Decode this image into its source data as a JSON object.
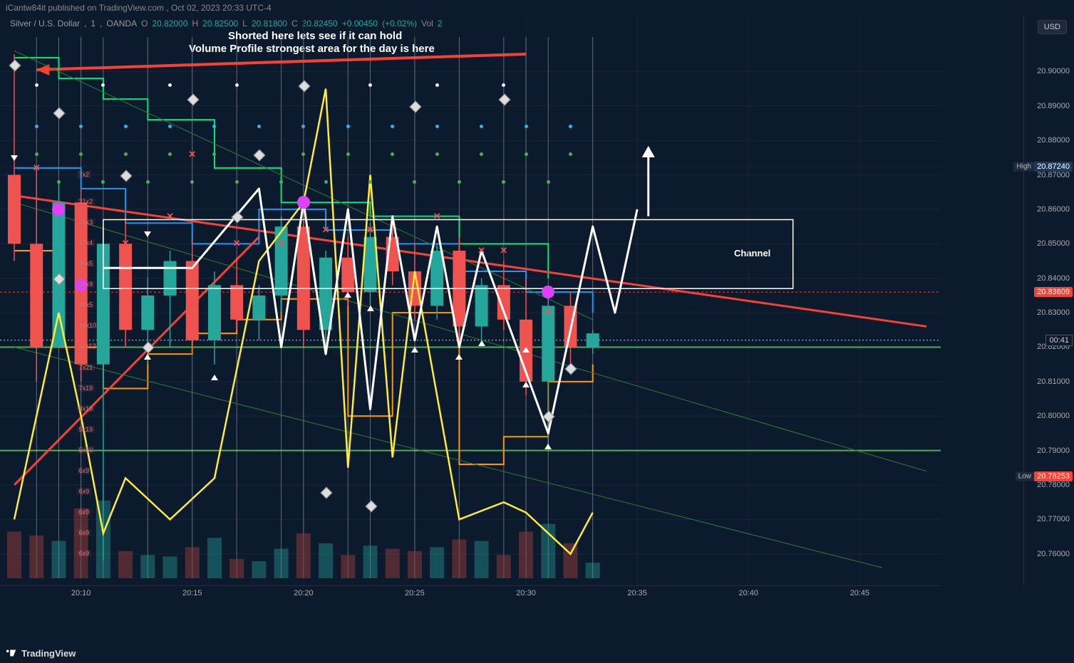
{
  "publish": {
    "user": "iCantw84it",
    "site": "TradingView.com",
    "date": "Oct 02, 2023 20:33 UTC-4"
  },
  "symbol": {
    "name": "Silver / U.S. Dollar",
    "interval": "1",
    "broker": "OANDA",
    "O": "20.82000",
    "H": "20.82500",
    "L": "20.81800",
    "C": "20.82450",
    "chg": "+0.00450",
    "chg_pct": "(+0.02%)",
    "extra": "Vol",
    "extra_val": "2"
  },
  "axis_currency": "USD",
  "annotations": {
    "line1": "Shorted here lets see if it can hold",
    "line2": "Volume Profile strongest area for the day is here",
    "channel": "Channel"
  },
  "colors": {
    "bg": "#0c1a2d",
    "grid": "#1b2535",
    "up": "#26a69a",
    "down": "#ef5350",
    "yellow": "#ffeb3b",
    "orange": "#ff9800",
    "blue": "#2196f3",
    "green": "#00e676",
    "lime": "#4caf50",
    "red": "#f44336",
    "white": "#ffffff",
    "magenta": "#e040fb",
    "vol_up": "#1b4a45",
    "vol_dn": "#5b2a2a"
  },
  "price_axis": {
    "min": 20.755,
    "max": 20.91,
    "ticks": [
      20.76,
      20.77,
      20.78,
      20.79,
      20.8,
      20.81,
      20.82,
      20.83,
      20.84,
      20.85,
      20.86,
      20.87,
      20.8724,
      20.88,
      20.89,
      20.9
    ],
    "tags": [
      {
        "value": "20.83609",
        "bg": "#f44336",
        "label": null
      },
      {
        "value": "20.87240",
        "bg": "#1e3a5a",
        "label": "High"
      },
      {
        "value": "20.78253",
        "bg": "#f44336",
        "label": "Low"
      }
    ],
    "countdown": {
      "value": "00:41",
      "at": 20.822
    }
  },
  "time_axis": {
    "min_min": 1207,
    "max_min": 1248,
    "ticks": [
      "20:10",
      "20:15",
      "20:20",
      "20:25",
      "20:30",
      "20:35",
      "20:40",
      "20:45"
    ]
  },
  "chart": {
    "type": "candlestick",
    "candles": [
      {
        "t": "20:07",
        "o": 20.87,
        "h": 20.905,
        "l": 20.845,
        "c": 20.85,
        "v": 60
      },
      {
        "t": "20:08",
        "o": 20.85,
        "h": 20.872,
        "l": 20.81,
        "c": 20.82,
        "v": 55
      },
      {
        "t": "20:09",
        "o": 20.82,
        "h": 20.868,
        "l": 20.82,
        "c": 20.862,
        "v": 48
      },
      {
        "t": "20:10",
        "o": 20.862,
        "h": 20.866,
        "l": 20.81,
        "c": 20.815,
        "v": 90
      },
      {
        "t": "20:11",
        "o": 20.815,
        "h": 20.855,
        "l": 20.758,
        "c": 20.85,
        "v": 100
      },
      {
        "t": "20:12",
        "o": 20.85,
        "h": 20.858,
        "l": 20.82,
        "c": 20.825,
        "v": 35
      },
      {
        "t": "20:13",
        "o": 20.825,
        "h": 20.84,
        "l": 20.815,
        "c": 20.835,
        "v": 30
      },
      {
        "t": "20:14",
        "o": 20.835,
        "h": 20.848,
        "l": 20.82,
        "c": 20.845,
        "v": 28
      },
      {
        "t": "20:15",
        "o": 20.845,
        "h": 20.852,
        "l": 20.818,
        "c": 20.822,
        "v": 40
      },
      {
        "t": "20:16",
        "o": 20.822,
        "h": 20.842,
        "l": 20.815,
        "c": 20.838,
        "v": 52
      },
      {
        "t": "20:17",
        "o": 20.838,
        "h": 20.846,
        "l": 20.825,
        "c": 20.828,
        "v": 25
      },
      {
        "t": "20:18",
        "o": 20.828,
        "h": 20.838,
        "l": 20.822,
        "c": 20.835,
        "v": 22
      },
      {
        "t": "20:19",
        "o": 20.835,
        "h": 20.858,
        "l": 20.83,
        "c": 20.855,
        "v": 38
      },
      {
        "t": "20:20",
        "o": 20.855,
        "h": 20.86,
        "l": 20.82,
        "c": 20.825,
        "v": 58
      },
      {
        "t": "20:21",
        "o": 20.825,
        "h": 20.848,
        "l": 20.82,
        "c": 20.846,
        "v": 45
      },
      {
        "t": "20:22",
        "o": 20.846,
        "h": 20.852,
        "l": 20.832,
        "c": 20.836,
        "v": 30
      },
      {
        "t": "20:23",
        "o": 20.836,
        "h": 20.856,
        "l": 20.832,
        "c": 20.852,
        "v": 42
      },
      {
        "t": "20:24",
        "o": 20.852,
        "h": 20.858,
        "l": 20.838,
        "c": 20.842,
        "v": 38
      },
      {
        "t": "20:25",
        "o": 20.842,
        "h": 20.85,
        "l": 20.828,
        "c": 20.832,
        "v": 35
      },
      {
        "t": "20:26",
        "o": 20.832,
        "h": 20.85,
        "l": 20.828,
        "c": 20.848,
        "v": 40
      },
      {
        "t": "20:27",
        "o": 20.848,
        "h": 20.852,
        "l": 20.822,
        "c": 20.826,
        "v": 50
      },
      {
        "t": "20:28",
        "o": 20.826,
        "h": 20.84,
        "l": 20.82,
        "c": 20.838,
        "v": 48
      },
      {
        "t": "20:29",
        "o": 20.838,
        "h": 20.845,
        "l": 20.825,
        "c": 20.828,
        "v": 30
      },
      {
        "t": "20:30",
        "o": 20.828,
        "h": 20.84,
        "l": 20.806,
        "c": 20.81,
        "v": 60
      },
      {
        "t": "20:31",
        "o": 20.81,
        "h": 20.835,
        "l": 20.79,
        "c": 20.832,
        "v": 70
      },
      {
        "t": "20:32",
        "o": 20.832,
        "h": 20.836,
        "l": 20.815,
        "c": 20.82,
        "v": 45
      },
      {
        "t": "20:33",
        "o": 20.82,
        "h": 20.825,
        "l": 20.818,
        "c": 20.824,
        "v": 20
      }
    ],
    "volume_max": 110
  },
  "overlays": {
    "yellow_line": [
      {
        "t": "20:07",
        "p": 20.77
      },
      {
        "t": "20:09",
        "p": 20.83
      },
      {
        "t": "20:10",
        "p": 20.8
      },
      {
        "t": "20:11",
        "p": 20.766
      },
      {
        "t": "20:12",
        "p": 20.782
      },
      {
        "t": "20:14",
        "p": 20.77
      },
      {
        "t": "20:16",
        "p": 20.782
      },
      {
        "t": "20:18",
        "p": 20.845
      },
      {
        "t": "20:20",
        "p": 20.862
      },
      {
        "t": "20:21",
        "p": 20.895
      },
      {
        "t": "20:22",
        "p": 20.785
      },
      {
        "t": "20:23",
        "p": 20.87
      },
      {
        "t": "20:24",
        "p": 20.788
      },
      {
        "t": "20:25",
        "p": 20.842
      },
      {
        "t": "20:27",
        "p": 20.77
      },
      {
        "t": "20:29",
        "p": 20.775
      },
      {
        "t": "20:30",
        "p": 20.772
      },
      {
        "t": "20:32",
        "p": 20.76
      },
      {
        "t": "20:33",
        "p": 20.772
      }
    ],
    "white_zigzag": [
      {
        "t": "20:11",
        "p": 20.843
      },
      {
        "t": "20:13",
        "p": 20.843
      },
      {
        "t": "20:15",
        "p": 20.843
      },
      {
        "t": "20:18",
        "p": 20.866
      },
      {
        "t": "20:19",
        "p": 20.82
      },
      {
        "t": "20:20",
        "p": 20.862
      },
      {
        "t": "20:21",
        "p": 20.818
      },
      {
        "t": "20:22",
        "p": 20.86
      },
      {
        "t": "20:23",
        "p": 20.802
      },
      {
        "t": "20:24",
        "p": 20.858
      },
      {
        "t": "20:25",
        "p": 20.822
      },
      {
        "t": "20:26",
        "p": 20.855
      },
      {
        "t": "20:27",
        "p": 20.82
      },
      {
        "t": "20:28",
        "p": 20.848
      },
      {
        "t": "20:31",
        "p": 20.795
      },
      {
        "t": "20:33",
        "p": 20.855
      },
      {
        "t": "20:34",
        "p": 20.83
      },
      {
        "t": "20:35",
        "p": 20.86
      }
    ],
    "arrow_up": {
      "t": "20:35.5",
      "from": 20.858,
      "to": 20.878
    },
    "channel_box": {
      "t1": "20:11",
      "t2": "20:42",
      "p_top": 20.857,
      "p_bot": 20.837
    },
    "red_trend": {
      "t1": "20:07",
      "p1": 20.864,
      "t2": "20:48",
      "p2": 20.826
    },
    "red_trend2": {
      "t1": "20:07",
      "p1": 20.78,
      "t2": "20:18",
      "p2": 20.852
    },
    "green_upper": {
      "t1": "20:07",
      "p1": 20.906,
      "t2": "20:33",
      "p2": 20.828
    },
    "green_lower": {
      "t1": "20:07",
      "p1": 20.82,
      "t2": "20:46",
      "p2": 20.756
    },
    "green_mid": {
      "t1": "20:07",
      "p1": 20.862,
      "t2": "20:48",
      "p2": 20.784
    },
    "lime_h1": 20.82,
    "lime_h2": 20.79,
    "red_dotted": 20.836,
    "white_dotted": 20.822,
    "blue_step": [
      {
        "t": "20:07",
        "p": 20.872
      },
      {
        "t": "20:10",
        "p": 20.866
      },
      {
        "t": "20:12",
        "p": 20.856
      },
      {
        "t": "20:15",
        "p": 20.85
      },
      {
        "t": "20:18",
        "p": 20.86
      },
      {
        "t": "20:21",
        "p": 20.854
      },
      {
        "t": "20:24",
        "p": 20.85
      },
      {
        "t": "20:27",
        "p": 20.842
      },
      {
        "t": "20:30",
        "p": 20.836
      },
      {
        "t": "20:33",
        "p": 20.83
      }
    ],
    "orange_step": [
      {
        "t": "20:07",
        "p": 20.848
      },
      {
        "t": "20:09",
        "p": 20.82
      },
      {
        "t": "20:11",
        "p": 20.808
      },
      {
        "t": "20:13",
        "p": 20.818
      },
      {
        "t": "20:15",
        "p": 20.824
      },
      {
        "t": "20:17",
        "p": 20.828
      },
      {
        "t": "20:19",
        "p": 20.834
      },
      {
        "t": "20:22",
        "p": 20.8
      },
      {
        "t": "20:24",
        "p": 20.83
      },
      {
        "t": "20:27",
        "p": 20.786
      },
      {
        "t": "20:29",
        "p": 20.794
      },
      {
        "t": "20:31",
        "p": 20.81
      },
      {
        "t": "20:33",
        "p": 20.815
      }
    ],
    "green_step_top": [
      {
        "t": "20:07",
        "p": 20.904
      },
      {
        "t": "20:09",
        "p": 20.898
      },
      {
        "t": "20:11",
        "p": 20.892
      },
      {
        "t": "20:13",
        "p": 20.886
      },
      {
        "t": "20:16",
        "p": 20.872
      },
      {
        "t": "20:19",
        "p": 20.862
      },
      {
        "t": "20:23",
        "p": 20.858
      },
      {
        "t": "20:27",
        "p": 20.85
      },
      {
        "t": "20:31",
        "p": 20.84
      }
    ],
    "diamonds": [
      {
        "t": "20:07",
        "p": 20.902
      },
      {
        "t": "20:09",
        "p": 20.888
      },
      {
        "t": "20:12",
        "p": 20.87
      },
      {
        "t": "20:15",
        "p": 20.892
      },
      {
        "t": "20:17",
        "p": 20.858
      },
      {
        "t": "20:18",
        "p": 20.876
      },
      {
        "t": "20:20",
        "p": 20.896
      },
      {
        "t": "20:21",
        "p": 20.778
      },
      {
        "t": "20:23",
        "p": 20.774
      },
      {
        "t": "20:25",
        "p": 20.89
      },
      {
        "t": "20:29",
        "p": 20.892
      },
      {
        "t": "20:31",
        "p": 20.8
      },
      {
        "t": "20:32",
        "p": 20.814
      },
      {
        "t": "20:13",
        "p": 20.82
      },
      {
        "t": "20:09",
        "p": 20.84
      }
    ],
    "magenta_dots": [
      {
        "t": "20:09",
        "p": 20.86
      },
      {
        "t": "20:20",
        "p": 20.862
      },
      {
        "t": "20:31",
        "p": 20.836
      },
      {
        "t": "20:10",
        "p": 20.838
      }
    ],
    "xmarks": [
      {
        "t": "20:08",
        "p": 20.872
      },
      {
        "t": "20:10",
        "p": 20.854
      },
      {
        "t": "20:12",
        "p": 20.85
      },
      {
        "t": "20:14",
        "p": 20.858
      },
      {
        "t": "20:15",
        "p": 20.876
      },
      {
        "t": "20:17",
        "p": 20.85
      },
      {
        "t": "20:19",
        "p": 20.85
      },
      {
        "t": "20:21",
        "p": 20.854
      },
      {
        "t": "20:23",
        "p": 20.854
      },
      {
        "t": "20:26",
        "p": 20.858
      },
      {
        "t": "20:28",
        "p": 20.848
      },
      {
        "t": "20:29",
        "p": 20.848
      },
      {
        "t": "20:31",
        "p": 20.83
      }
    ],
    "tri_up": [
      {
        "t": "20:13",
        "p": 20.818
      },
      {
        "t": "20:16",
        "p": 20.812
      },
      {
        "t": "20:22",
        "p": 20.836
      },
      {
        "t": "20:23",
        "p": 20.832
      },
      {
        "t": "20:25",
        "p": 20.82
      },
      {
        "t": "20:27",
        "p": 20.818
      },
      {
        "t": "20:28",
        "p": 20.822
      },
      {
        "t": "20:31",
        "p": 20.792
      },
      {
        "t": "20:30",
        "p": 20.82
      },
      {
        "t": "20:30",
        "p": 20.81
      }
    ],
    "tri_dn": [
      {
        "t": "20:07",
        "p": 20.874
      },
      {
        "t": "20:13",
        "p": 20.852
      }
    ],
    "green_dots_rows": [
      {
        "p": 20.876,
        "ts": [
          "20:08",
          "20:10",
          "20:12",
          "20:14",
          "20:16",
          "20:18",
          "20:20",
          "20:22",
          "20:24",
          "20:26",
          "20:28",
          "20:30",
          "20:32"
        ]
      },
      {
        "p": 20.868,
        "ts": [
          "20:09",
          "20:11",
          "20:13",
          "20:15",
          "20:17",
          "20:19",
          "20:21",
          "20:23",
          "20:25",
          "20:27",
          "20:29",
          "20:31"
        ]
      }
    ],
    "blue_dots_rows": [
      {
        "p": 20.884,
        "ts": [
          "20:08",
          "20:10",
          "20:12",
          "20:14",
          "20:16",
          "20:18",
          "20:20",
          "20:22",
          "20:24",
          "20:26",
          "20:28",
          "20:30",
          "20:32"
        ]
      }
    ],
    "white_dots_rows": [
      {
        "p": 20.896,
        "ts": [
          "20:08",
          "20:11",
          "20:14",
          "20:17",
          "20:20",
          "20:23",
          "20:26",
          "20:29"
        ]
      }
    ],
    "vlines": [
      "20:08",
      "20:09",
      "20:10",
      "20:11",
      "20:13",
      "20:15",
      "20:17",
      "20:19",
      "20:20",
      "20:22",
      "20:23",
      "20:25",
      "20:27",
      "20:29",
      "20:30",
      "20:31",
      "20:33"
    ]
  },
  "volume_profile": {
    "anchor_t": "20:10",
    "rows": [
      {
        "p": 20.87,
        "label": "7x2"
      },
      {
        "p": 20.862,
        "label": "21x2"
      },
      {
        "p": 20.856,
        "label": "23x3"
      },
      {
        "p": 20.85,
        "label": "27x4"
      },
      {
        "p": 20.844,
        "label": "30x5"
      },
      {
        "p": 20.838,
        "label": "89x9"
      },
      {
        "p": 20.832,
        "label": "85x5"
      },
      {
        "p": 20.826,
        "label": "10x10"
      },
      {
        "p": 20.82,
        "label": "11x12"
      },
      {
        "p": 20.814,
        "label": "7x21"
      },
      {
        "p": 20.808,
        "label": "7x19"
      },
      {
        "p": 20.802,
        "label": "8x19"
      },
      {
        "p": 20.796,
        "label": "5x19"
      },
      {
        "p": 20.79,
        "label": "5x10"
      },
      {
        "p": 20.784,
        "label": "6x9"
      },
      {
        "p": 20.778,
        "label": "6x9"
      },
      {
        "p": 20.772,
        "label": "6x9"
      },
      {
        "p": 20.766,
        "label": "6x9"
      },
      {
        "p": 20.76,
        "label": "6x9"
      }
    ]
  },
  "watermark": "TradingView"
}
